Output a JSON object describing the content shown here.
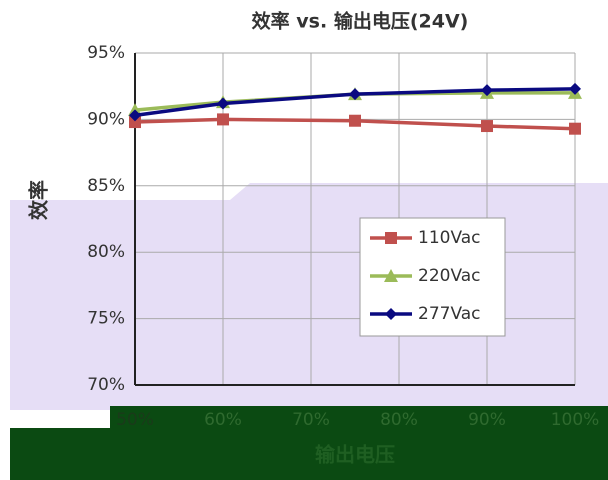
{
  "chart_data": {
    "type": "line",
    "title": "效率 vs. 输出电压(24V)",
    "x_label": "输出电压",
    "y_label": "效率",
    "x": [
      50,
      60,
      75,
      90,
      100
    ],
    "series": [
      {
        "name": "110Vac",
        "color": "#c0504d",
        "marker": "square",
        "values": [
          89.8,
          90.0,
          89.9,
          89.5,
          89.3
        ]
      },
      {
        "name": "220Vac",
        "color": "#9bbb59",
        "marker": "triangle",
        "values": [
          90.7,
          91.3,
          91.9,
          92.0,
          92.0
        ]
      },
      {
        "name": "277Vac",
        "color": "#0a0a80",
        "marker": "diamond",
        "values": [
          90.3,
          91.2,
          91.9,
          92.2,
          92.3
        ]
      }
    ],
    "xlim": [
      50,
      100
    ],
    "xticks": [
      {
        "value": 50,
        "label": "50%"
      },
      {
        "value": 60,
        "label": "60%"
      },
      {
        "value": 70,
        "label": "70%"
      },
      {
        "value": 80,
        "label": "80%"
      },
      {
        "value": 90,
        "label": "90%"
      },
      {
        "value": 100,
        "label": "100%"
      }
    ],
    "ylim": [
      70,
      95
    ],
    "yticks": [
      {
        "value": 70,
        "label": "70%"
      },
      {
        "value": 75,
        "label": "75%"
      },
      {
        "value": 80,
        "label": "80%"
      },
      {
        "value": 85,
        "label": "85%"
      },
      {
        "value": 90,
        "label": "90%"
      },
      {
        "value": 95,
        "label": "95%"
      }
    ],
    "grid": true
  }
}
